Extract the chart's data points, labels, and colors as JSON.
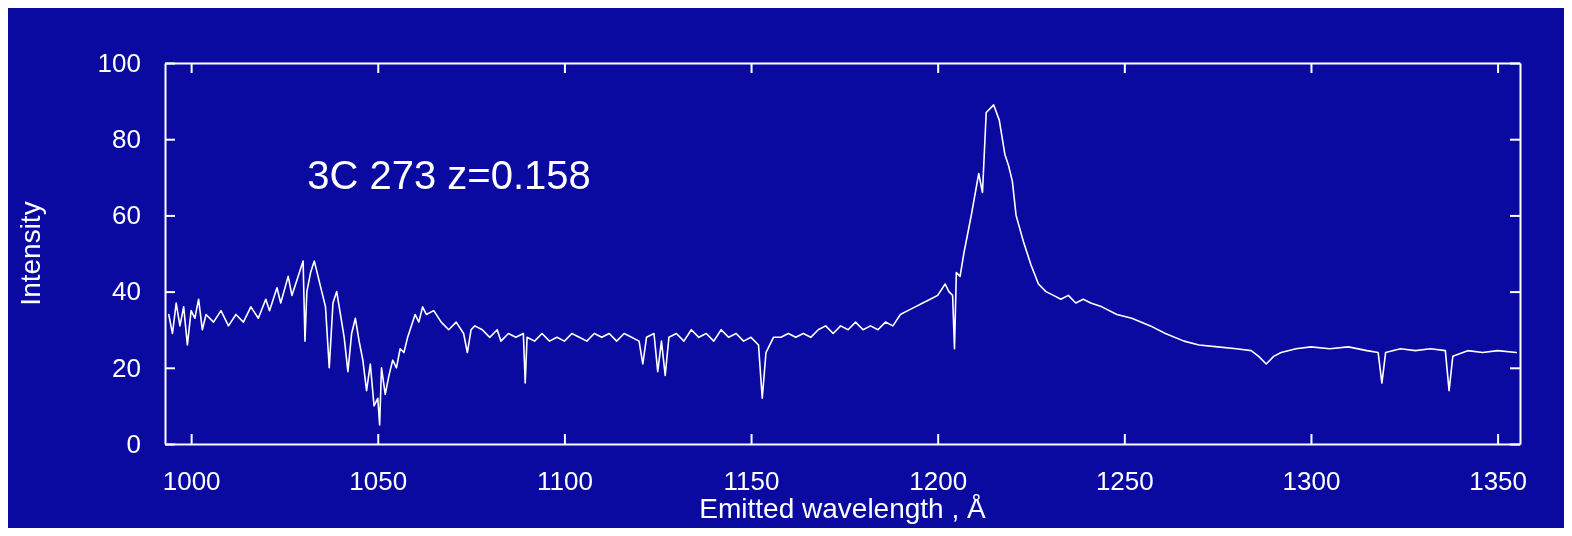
{
  "chart_data": {
    "type": "line",
    "xlabel": "Emitted wavelength , Å",
    "ylabel": "Intensity",
    "annotations": [
      "3C 273  z=0.158"
    ],
    "xlim": [
      993,
      1356
    ],
    "ylim": [
      0,
      100
    ],
    "xticks": [
      1000,
      1050,
      1100,
      1150,
      1200,
      1250,
      1300,
      1350
    ],
    "yticks": [
      0,
      20,
      40,
      60,
      80,
      100
    ],
    "grid": false,
    "marker": "none",
    "line_style": "solid",
    "series": [
      {
        "color": "#ffffff",
        "x": [
          994,
          995,
          996,
          997,
          998,
          999,
          1000,
          1001,
          1002,
          1003,
          1004,
          1006,
          1008,
          1010,
          1012,
          1014,
          1016,
          1018,
          1020,
          1021,
          1023,
          1024,
          1026,
          1027,
          1028,
          1030,
          1030.5,
          1031,
          1032,
          1033,
          1034,
          1035,
          1036,
          1037,
          1038,
          1039,
          1040,
          1041,
          1042,
          1043,
          1044,
          1045,
          1046,
          1047,
          1048,
          1049,
          1050,
          1050.5,
          1051,
          1052,
          1053,
          1054,
          1055,
          1056,
          1057,
          1058,
          1059,
          1060,
          1061,
          1062,
          1063,
          1065,
          1067,
          1069,
          1071,
          1073,
          1074,
          1075,
          1076,
          1078,
          1080,
          1082,
          1083,
          1085,
          1087,
          1089,
          1089.5,
          1090,
          1092,
          1094,
          1096,
          1098,
          1100,
          1102,
          1104,
          1106,
          1108,
          1110,
          1112,
          1114,
          1116,
          1118,
          1120,
          1121,
          1122,
          1124,
          1125,
          1126,
          1127,
          1128,
          1130,
          1132,
          1134,
          1136,
          1138,
          1140,
          1142,
          1144,
          1146,
          1148,
          1150,
          1152,
          1153,
          1154,
          1156,
          1158,
          1160,
          1162,
          1164,
          1166,
          1168,
          1170,
          1172,
          1174,
          1176,
          1178,
          1180,
          1182,
          1184,
          1186,
          1188,
          1190,
          1192,
          1194,
          1196,
          1198,
          1200,
          1202,
          1203,
          1204,
          1204.5,
          1205,
          1206,
          1207,
          1209,
          1211,
          1212,
          1213,
          1215,
          1216.5,
          1218,
          1219,
          1220,
          1221,
          1223,
          1225,
          1227,
          1229,
          1231,
          1233,
          1235,
          1237,
          1239,
          1241,
          1244,
          1248,
          1252,
          1257,
          1261,
          1266,
          1270,
          1275,
          1280,
          1284,
          1286,
          1288,
          1290,
          1292,
          1296,
          1300,
          1305,
          1310,
          1315,
          1318,
          1319,
          1320,
          1324,
          1328,
          1332,
          1336,
          1337,
          1338,
          1342,
          1346,
          1350,
          1355
        ],
        "values": [
          34,
          29,
          37,
          31,
          36,
          26,
          35,
          33,
          38,
          30,
          34,
          32,
          35,
          31,
          34,
          32,
          36,
          33,
          38,
          35,
          41,
          37,
          44,
          39,
          42,
          48,
          27,
          40,
          45,
          48,
          44,
          40,
          36,
          20,
          37,
          40,
          34,
          28,
          19,
          29,
          33,
          27,
          22,
          14,
          21,
          10,
          12,
          5,
          20,
          13,
          18,
          22,
          20,
          25,
          24,
          28,
          31,
          34,
          32,
          36,
          34,
          35,
          32,
          30,
          32,
          29,
          24,
          30,
          31,
          30,
          28,
          30,
          27,
          29,
          28,
          29,
          16,
          28,
          27,
          29,
          27,
          28,
          27,
          29,
          28,
          27,
          29,
          28,
          29,
          27,
          29,
          28,
          27,
          21,
          28,
          29,
          19,
          27,
          18,
          28,
          29,
          27,
          30,
          28,
          29,
          27,
          30,
          28,
          29,
          27,
          28,
          26,
          12,
          24,
          28,
          28,
          29,
          28,
          29,
          28,
          30,
          31,
          29,
          31,
          30,
          32,
          30,
          31,
          30,
          32,
          31,
          34,
          35,
          36,
          37,
          38,
          39,
          42,
          40,
          39,
          25,
          45,
          44,
          50,
          60,
          71,
          66,
          87,
          89,
          85,
          76,
          73,
          69,
          60,
          53,
          47,
          42,
          40,
          39,
          38,
          39,
          37,
          38,
          37,
          36,
          34,
          33,
          31,
          29,
          27,
          26,
          25.5,
          25,
          24.5,
          23,
          21,
          23,
          24,
          25,
          25.5,
          25,
          25.5,
          24.5,
          24,
          16,
          24,
          25,
          24.5,
          25,
          24.5,
          14,
          23,
          24.5,
          24,
          24.5,
          24
        ]
      }
    ]
  }
}
